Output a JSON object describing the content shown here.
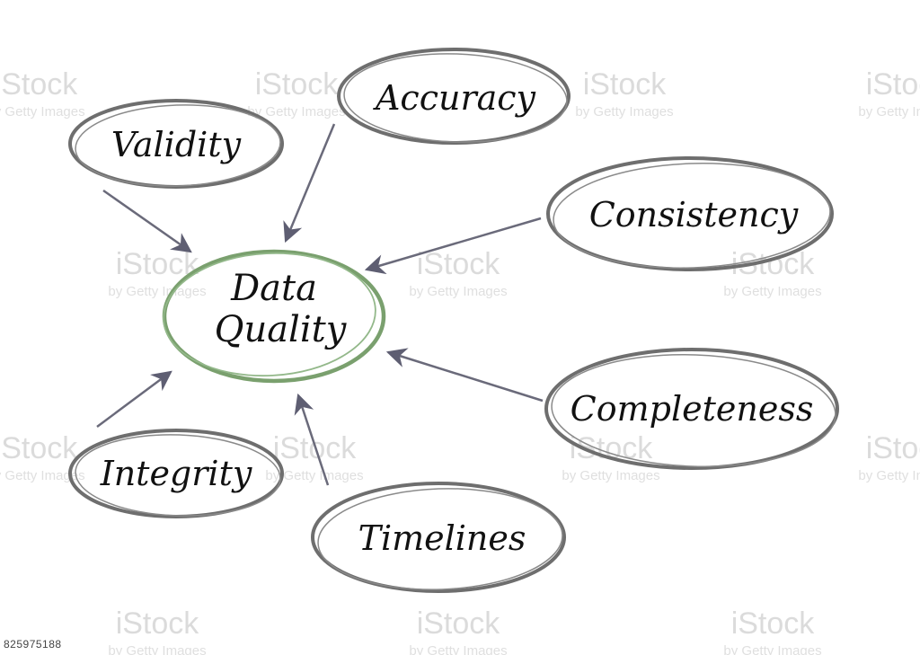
{
  "diagram": {
    "center": {
      "label_lines": [
        "Data",
        "Quality"
      ],
      "color": "#7aa06e"
    },
    "nodes": [
      {
        "id": "validity",
        "label": "Validity"
      },
      {
        "id": "accuracy",
        "label": "Accuracy"
      },
      {
        "id": "consistency",
        "label": "Consistency"
      },
      {
        "id": "completeness",
        "label": "Completeness"
      },
      {
        "id": "timelines",
        "label": "Timelines"
      },
      {
        "id": "integrity",
        "label": "Integrity"
      }
    ],
    "ellipse_color": "#6e6e6e",
    "arrow_color": "#6a6a7a"
  },
  "watermark": {
    "brand": "iStock",
    "byline": "by Getty Images",
    "stock_id": "825975188"
  }
}
